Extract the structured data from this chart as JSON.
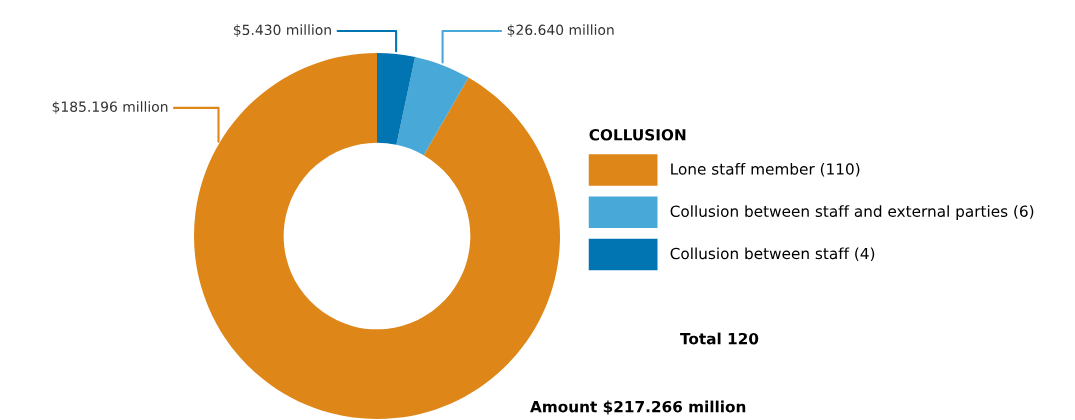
{
  "chart_data": {
    "type": "donut",
    "legend_title": "COLLUSION",
    "categories": [
      "Lone staff member (110)",
      "Collusion between staff and external parties (6)",
      "Collusion between staff (4)"
    ],
    "values": [
      110,
      6,
      4
    ],
    "colors": [
      "#de8618",
      "#48a8d8",
      "#0075b2"
    ],
    "annotations": [
      {
        "text": "$185.196 million",
        "x": "Lone staff member (110)"
      },
      {
        "text": "$26.640 million",
        "x": "Collusion between staff and external parties (6)"
      },
      {
        "text": "$5.430 million",
        "x": "Collusion between staff (4)"
      },
      "Total 120",
      "Amount $217.266 million"
    ],
    "legend": "right"
  }
}
